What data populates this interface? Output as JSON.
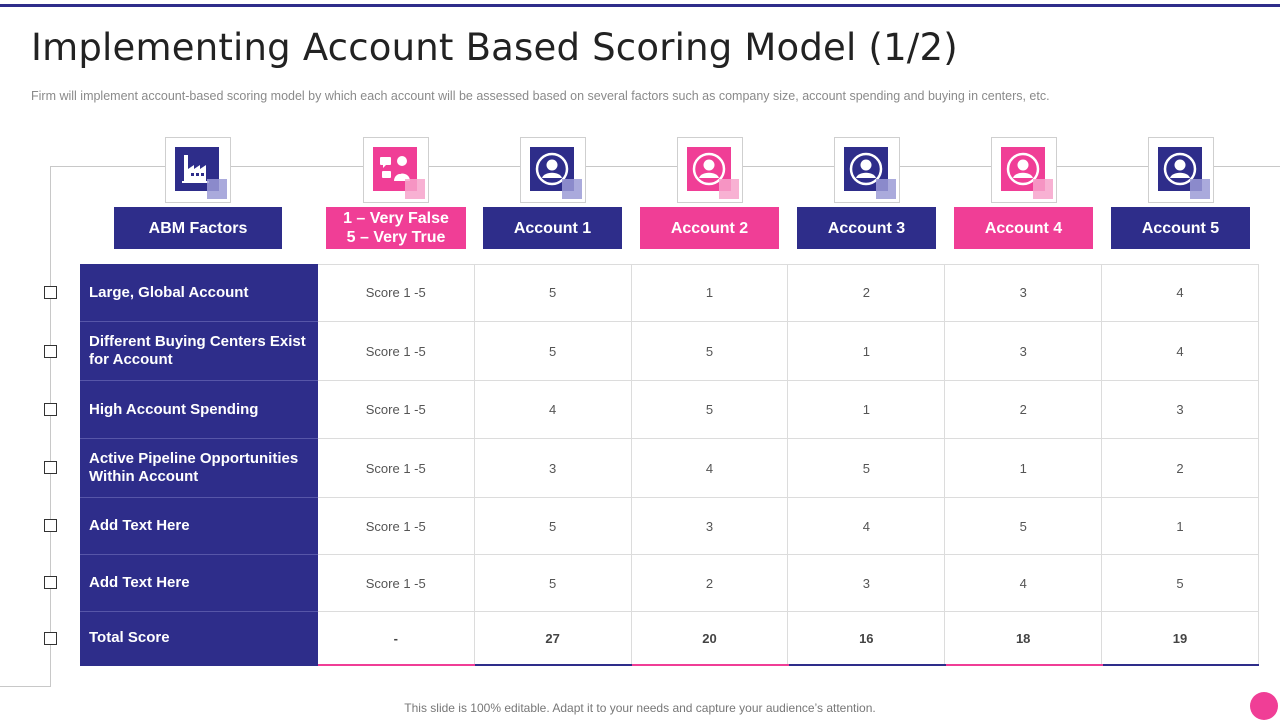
{
  "slide": {
    "title": "Implementing Account Based Scoring Model (1/2)",
    "subtitle": "Firm will implement account-based scoring model by which each account will be assessed based on several factors such as company size, account spending and buying in centers, etc.",
    "footer": "This slide is 100% editable. Adapt it to your needs and capture your audience’s attention."
  },
  "colors": {
    "navy": "#2e2d8a",
    "pink": "#f03e96"
  },
  "headers": {
    "factors": "ABM Factors",
    "scale_line1": "1 – Very False",
    "scale_line2": "5 – Very True",
    "accounts": [
      "Account 1",
      "Account 2",
      "Account 3",
      "Account 4",
      "Account 5"
    ]
  },
  "icons": [
    "factory-icon",
    "chat-person-icon",
    "user-icon",
    "user-icon",
    "user-icon",
    "user-icon",
    "user-icon"
  ],
  "rows": [
    {
      "factor": "Large, Global Account",
      "scale": "Score 1 -5",
      "scores": [
        "5",
        "1",
        "2",
        "3",
        "4"
      ]
    },
    {
      "factor": "Different Buying Centers Exist for Account",
      "scale": "Score 1 -5",
      "scores": [
        "5",
        "5",
        "1",
        "3",
        "4"
      ]
    },
    {
      "factor": "High Account Spending",
      "scale": "Score 1 -5",
      "scores": [
        "4",
        "5",
        "1",
        "2",
        "3"
      ]
    },
    {
      "factor": "Active Pipeline Opportunities Within Account",
      "scale": "Score 1 -5",
      "scores": [
        "3",
        "4",
        "5",
        "1",
        "2"
      ]
    },
    {
      "factor": "Add  Text Here",
      "scale": "Score 1 -5",
      "scores": [
        "5",
        "3",
        "4",
        "5",
        "1"
      ]
    },
    {
      "factor": "Add  Text Here",
      "scale": "Score 1 -5",
      "scores": [
        "5",
        "2",
        "3",
        "4",
        "5"
      ]
    }
  ],
  "total": {
    "factor": "Total Score",
    "scale": "-",
    "scores": [
      "27",
      "20",
      "16",
      "18",
      "19"
    ]
  }
}
